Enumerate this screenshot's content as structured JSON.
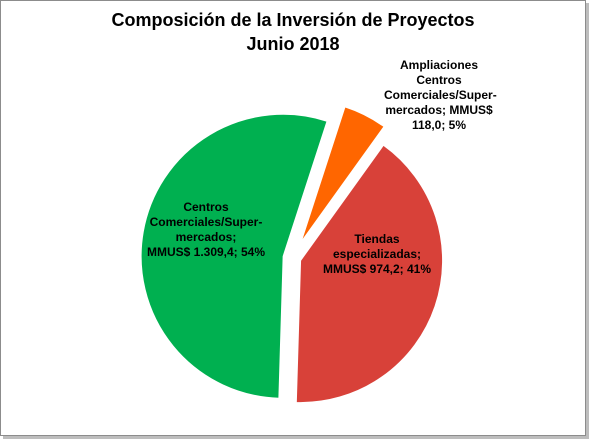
{
  "chart_data": {
    "type": "pie",
    "title": [
      "Composición de la Inversión de Proyectos",
      "Junio 2018"
    ],
    "unit": "MMUS$",
    "slices": [
      {
        "category": "Ampliaciones Centros Comerciales/Supermercados",
        "value": 118.0,
        "percent": 5,
        "color": "#ff6600",
        "label_lines": [
          "Ampliaciones",
          "Centros",
          "Comerciales/Super-",
          "mercados; MMUS$",
          "118,0; 5%"
        ]
      },
      {
        "category": "Tiendas especializadas",
        "value": 974.2,
        "percent": 41,
        "color": "#d84139",
        "label_lines": [
          "Tiendas",
          "especializadas;",
          "MMUS$ 974,2; 41%"
        ]
      },
      {
        "category": "Centros Comerciales/Supermercados",
        "value": 1309.4,
        "percent": 54,
        "color": "#00b050",
        "label_lines": [
          "Centros",
          "Comerciales/Super-",
          "mercados;",
          "MMUS$ 1.309,4; 54%"
        ]
      }
    ],
    "legend": "none",
    "exploded": true
  }
}
